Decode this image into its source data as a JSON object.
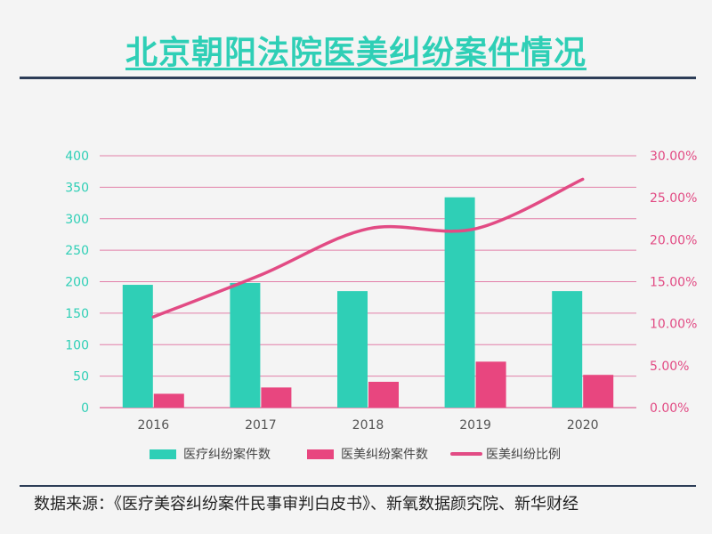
{
  "title": "北京朝阳法院医美纠纷案件情况",
  "source": "数据来源：《医疗美容纠纷案件民事审判白皮书》、新氧数据颜究院、新华财经",
  "colors": {
    "medical": "#2fcfb6",
    "cosmetic": "#e8467f",
    "ratio": "#e24b84",
    "grid": "#e27fa8"
  },
  "chart_data": {
    "type": "bar",
    "categories": [
      "2016",
      "2017",
      "2018",
      "2019",
      "2020"
    ],
    "series": [
      {
        "name": "医疗纠纷案件数",
        "type": "bar",
        "axis": "left",
        "values": [
          195,
          198,
          185,
          334,
          185
        ]
      },
      {
        "name": "医美纠纷案件数",
        "type": "bar",
        "axis": "left",
        "values": [
          22,
          32,
          41,
          73,
          52
        ]
      },
      {
        "name": "医美纠纷比例",
        "type": "line",
        "axis": "right",
        "values": [
          0.108,
          0.158,
          0.213,
          0.213,
          0.272
        ]
      }
    ],
    "y_left": {
      "ylim": [
        0,
        400
      ],
      "ticks": [
        "0",
        "50",
        "100",
        "150",
        "200",
        "250",
        "300",
        "350",
        "400"
      ]
    },
    "y_right": {
      "ylim": [
        0,
        0.3
      ],
      "ticks": [
        "0.00%",
        "5.00%",
        "10.00%",
        "15.00%",
        "20.00%",
        "25.00%",
        "30.00%"
      ]
    },
    "grid": true,
    "legend": "bottom"
  }
}
